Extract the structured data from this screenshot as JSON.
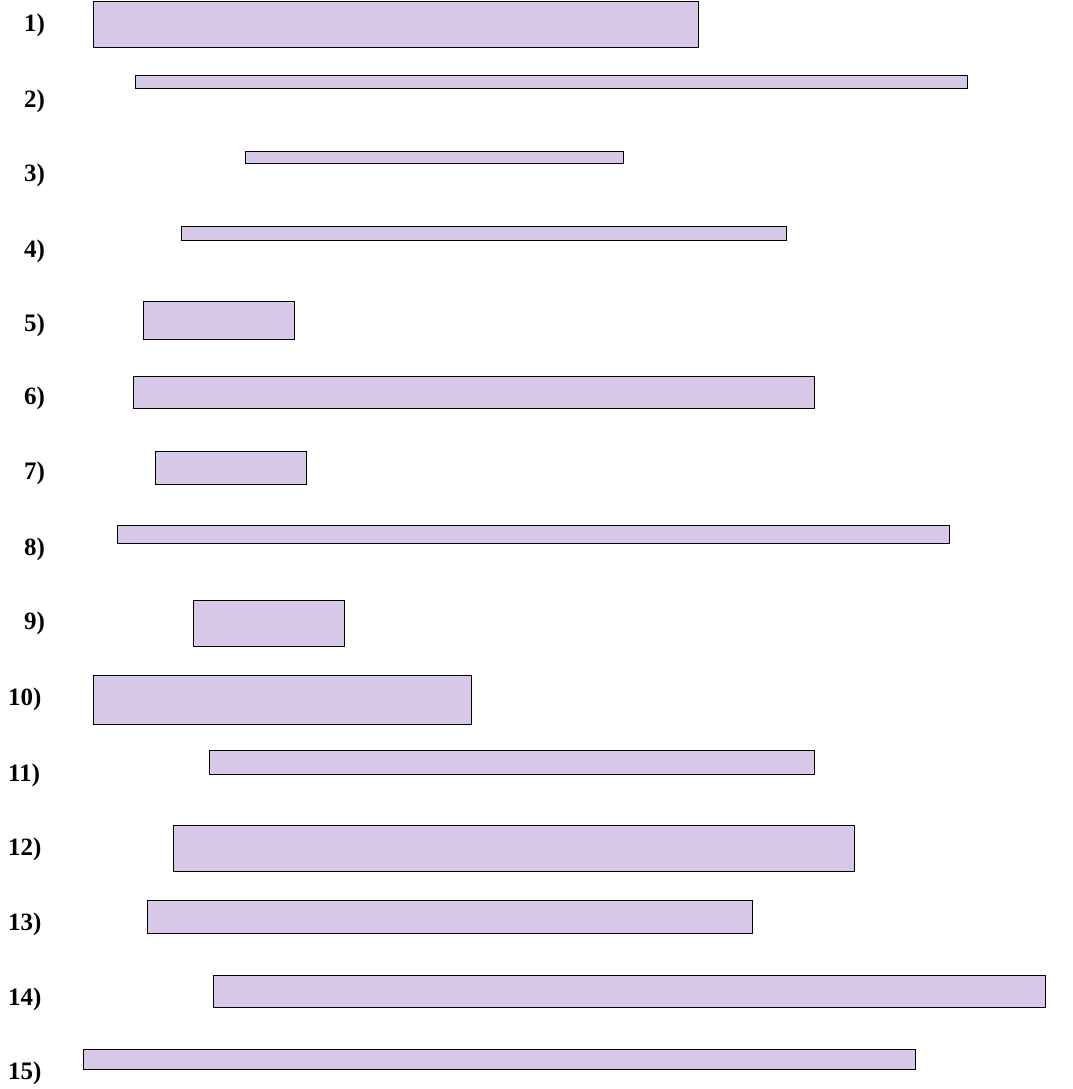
{
  "colors": {
    "bar_fill": "#d8c8e8",
    "bar_border": "#000000",
    "label_text": "#000000",
    "background": "#ffffff"
  },
  "rows": [
    {
      "label": "1)"
    },
    {
      "label": "2)"
    },
    {
      "label": "3)"
    },
    {
      "label": "4)"
    },
    {
      "label": "5)"
    },
    {
      "label": "6)"
    },
    {
      "label": "7)"
    },
    {
      "label": "8)"
    },
    {
      "label": "9)"
    },
    {
      "label": "10)"
    },
    {
      "label": "11)"
    },
    {
      "label": "12)"
    },
    {
      "label": "13)"
    },
    {
      "label": "14)"
    },
    {
      "label": "15)"
    }
  ]
}
